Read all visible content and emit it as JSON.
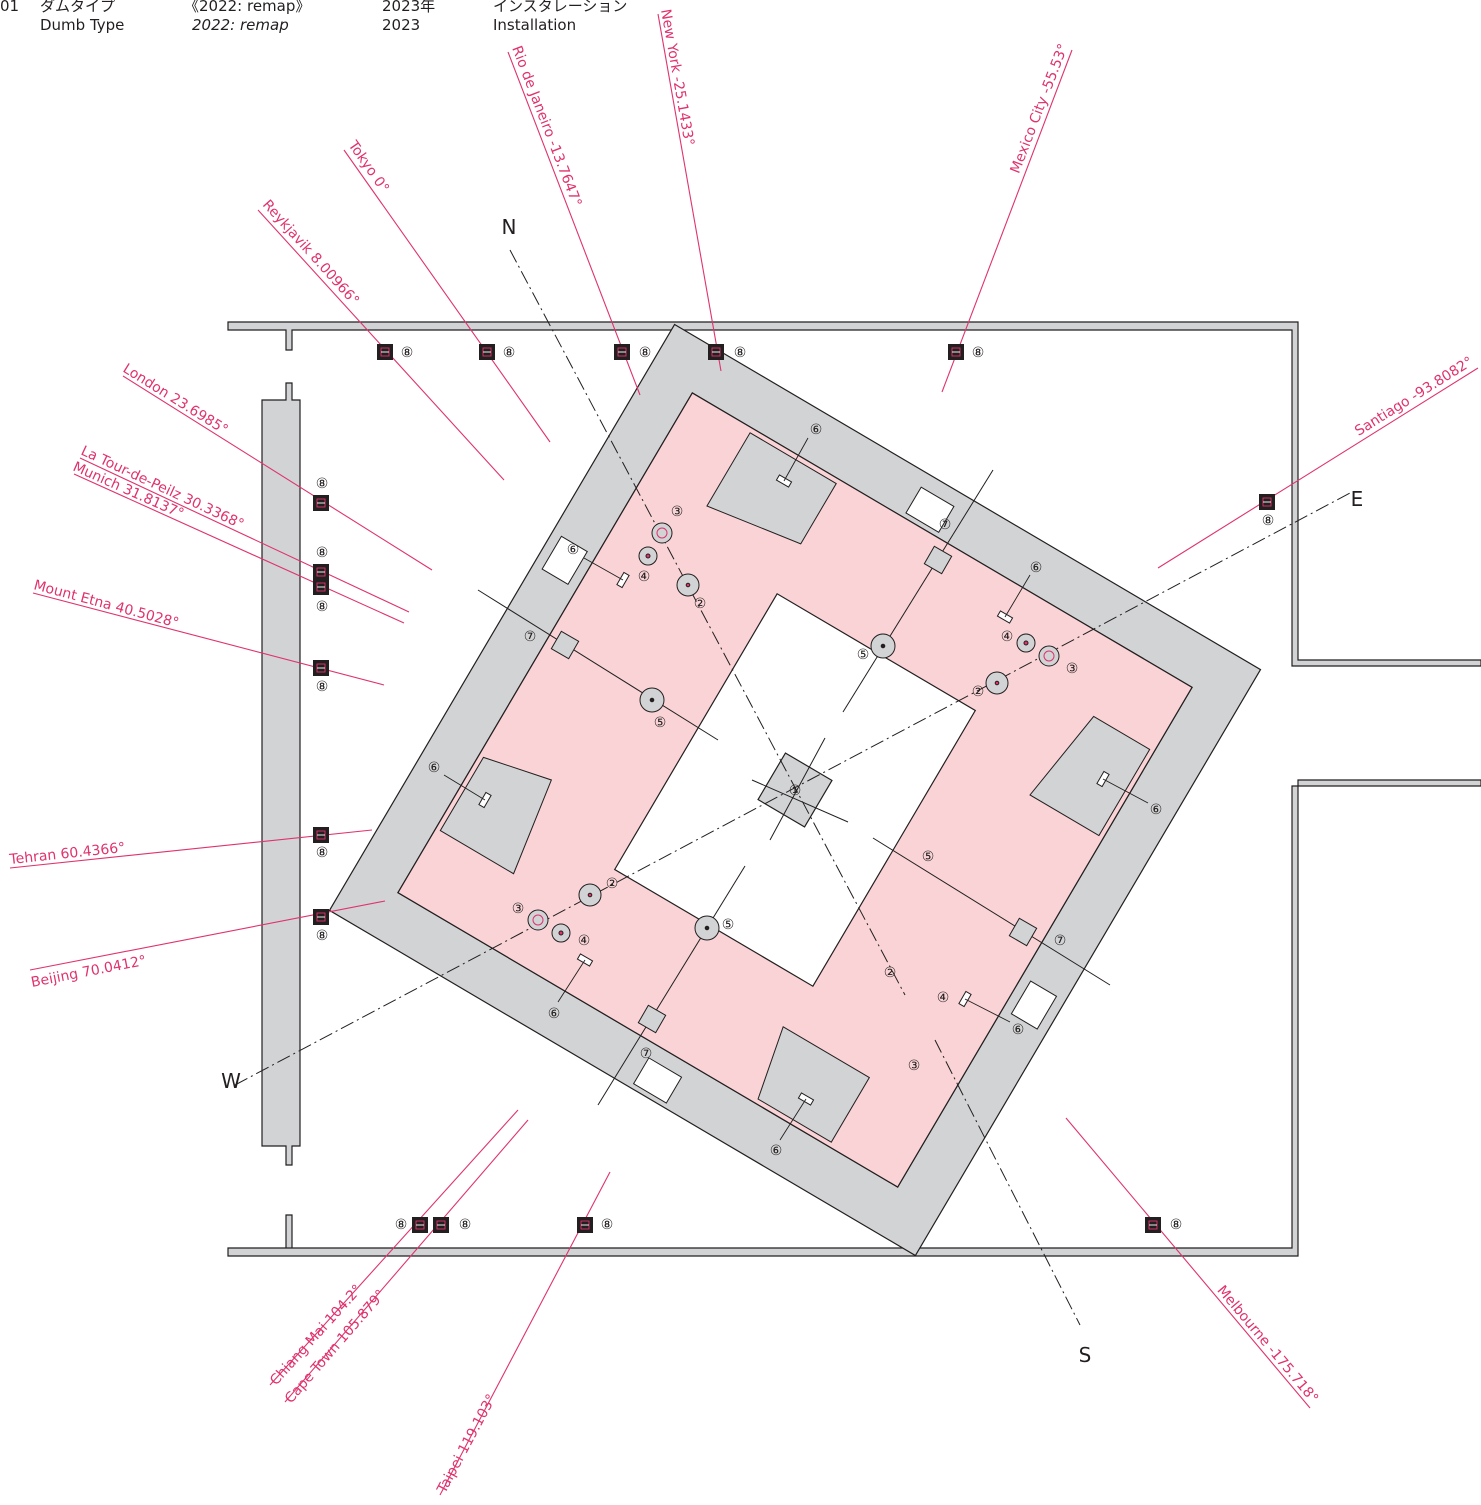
{
  "header": {
    "number": "01",
    "artist_ja": "ダムタイプ",
    "artist_en": "Dumb Type",
    "title_ja": "《2022: remap》",
    "title_en": "2022: remap",
    "year_ja": "2023年",
    "year_en": "2023",
    "medium_ja": "インスタレーション",
    "medium_en": "Installation"
  },
  "compass": {
    "north": "N",
    "east": "E",
    "south": "S",
    "west": "W"
  },
  "cities": [
    "New York -25.1433°",
    "Rio de Janeiro -13.7647°",
    "Tokyo 0°",
    "Reykjavik 8.00966°",
    "Mexico City -55.53°",
    "Santiago -93.8082°",
    "London 23.6985°",
    "La Tour-de-Peilz 30.3368°",
    "Munich 31.8137°",
    "Mount Etna 40.5028°",
    "Tehran 60.4366°",
    "Beijing 70.0412°",
    "Chiang Mai 104.2°",
    "Cape Town 105.879°",
    "Taipei 119.103°",
    "Melbourne -175.718°"
  ],
  "markers": {
    "m1": "①",
    "m2": "②",
    "m3": "③",
    "m4": "④",
    "m5": "⑤",
    "m6": "⑥",
    "m7": "⑦",
    "m8": "⑧"
  },
  "colors": {
    "accent": "#e0326e",
    "room_fill": "#f9d3d5",
    "wall_fill": "#d2d3d4",
    "line": "#231f20"
  }
}
